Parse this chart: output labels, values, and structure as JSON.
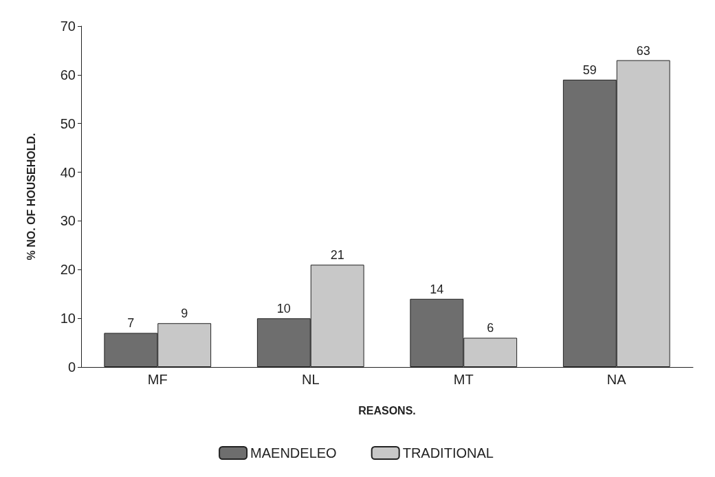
{
  "chart_data": {
    "type": "bar",
    "xlabel": "REASONS.",
    "ylabel": "% NO. OF HOUSEHOLD.",
    "categories": [
      "MF",
      "NL",
      "MT",
      "NA"
    ],
    "series": [
      {
        "name": "MAENDELEO",
        "color": "#6e6e6e",
        "values": [
          7,
          10,
          14,
          59
        ]
      },
      {
        "name": "TRADITIONAL",
        "color": "#c8c8c8",
        "values": [
          9,
          21,
          6,
          63
        ]
      }
    ],
    "ylim": [
      0,
      70
    ],
    "yticks": [
      0,
      10,
      20,
      30,
      40,
      50,
      60,
      70
    ],
    "data_labels": true,
    "grid": false,
    "legend": "bottom"
  }
}
